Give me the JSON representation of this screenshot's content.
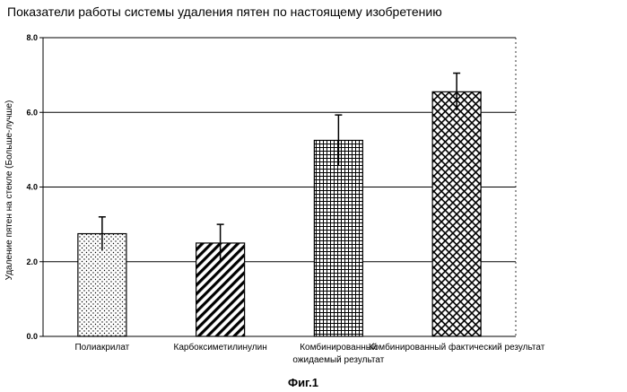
{
  "chart_data": {
    "type": "bar",
    "title": "Показатели работы системы удаления пятен по настоящему изобретению",
    "xlabel": "",
    "ylabel": "Удаление пятен на стекле (Больше-лучше)",
    "ylim": [
      0,
      8
    ],
    "yticks": [
      "0.0",
      "2.0",
      "4.0",
      "6.0",
      "8.0"
    ],
    "grid": true,
    "categories": [
      [
        "Полиакрилат"
      ],
      [
        "Карбоксиметилинулин"
      ],
      [
        "Комбинированный",
        "ожидаемый результат"
      ],
      [
        "Комбинированный фактический результат"
      ]
    ],
    "values": [
      2.75,
      2.5,
      5.25,
      6.55
    ],
    "errors": [
      0.45,
      0.5,
      0.68,
      0.5
    ],
    "patterns": [
      "dots",
      "diagonal",
      "grid",
      "crosshatch"
    ]
  },
  "caption": "Фиг.1",
  "colors": {
    "ink": "#000000",
    "background": "#ffffff"
  }
}
